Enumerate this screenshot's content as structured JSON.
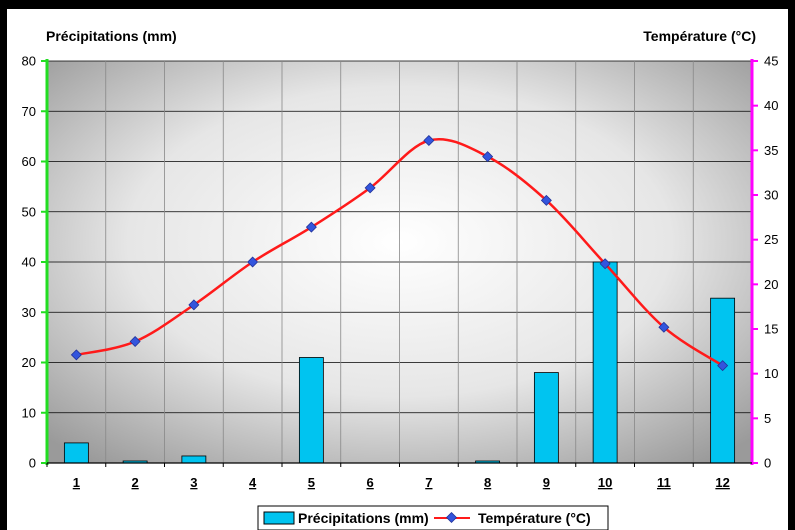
{
  "chart_data": {
    "type": "bar+line",
    "categories": [
      "1",
      "2",
      "3",
      "4",
      "5",
      "6",
      "7",
      "8",
      "9",
      "10",
      "11",
      "12"
    ],
    "left_axis_title": "Précipitations (mm)",
    "right_axis_title": "Température (°C)",
    "y_left": {
      "min": 0,
      "max": 80,
      "ticks": [
        "0",
        "10",
        "20",
        "30",
        "40",
        "50",
        "60",
        "70",
        "80"
      ]
    },
    "y_right": {
      "min": 0,
      "max": 45,
      "ticks": [
        "0",
        "5",
        "10",
        "15",
        "20",
        "25",
        "30",
        "35",
        "40",
        "45"
      ]
    },
    "grid": true,
    "legend_position": "bottom",
    "series": [
      {
        "name": "Précipitations (mm)",
        "type": "bar",
        "axis": "left",
        "color": "#00c4f0",
        "values": [
          4,
          0.4,
          1.4,
          0,
          21,
          0,
          0,
          0.4,
          18,
          40,
          0,
          32.8
        ]
      },
      {
        "name": "Température (°C)",
        "type": "line",
        "axis": "right",
        "color": "#ff1a1a",
        "marker_color": "#3355dd",
        "values": [
          12.1,
          13.6,
          17.7,
          22.5,
          26.4,
          30.8,
          36.1,
          34.3,
          29.4,
          22.3,
          15.2,
          10.9
        ]
      }
    ],
    "axis_colors": {
      "left": "#22dd22",
      "right": "#ff00ff"
    }
  }
}
